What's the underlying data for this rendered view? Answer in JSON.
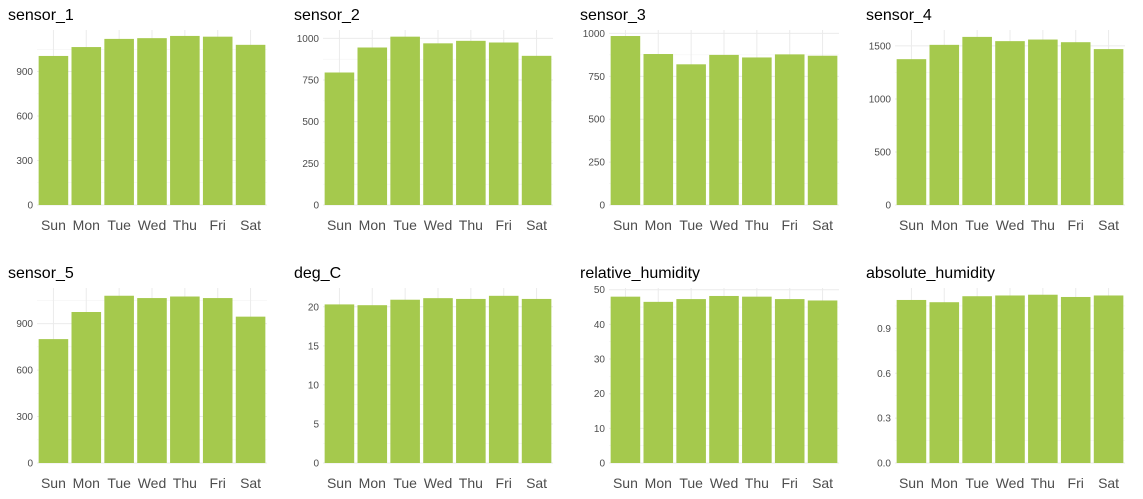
{
  "colors": {
    "bar": "#a5c94d",
    "grid": "#ebebeb",
    "tick_text": "#4d4d4d",
    "title_text": "#000000"
  },
  "chart_data": [
    {
      "type": "bar",
      "title": "sensor_1",
      "categories": [
        "Sun",
        "Mon",
        "Tue",
        "Wed",
        "Thu",
        "Fri",
        "Sat"
      ],
      "values": [
        1005,
        1065,
        1120,
        1125,
        1140,
        1135,
        1080
      ],
      "ylim": [
        0,
        1180
      ],
      "yticks": [
        0,
        300,
        600,
        900
      ],
      "ytick_labels": [
        "0",
        "300",
        "600",
        "900"
      ],
      "grid": true
    },
    {
      "type": "bar",
      "title": "sensor_2",
      "categories": [
        "Sun",
        "Mon",
        "Tue",
        "Wed",
        "Thu",
        "Fri",
        "Sat"
      ],
      "values": [
        795,
        945,
        1010,
        970,
        985,
        975,
        895
      ],
      "ylim": [
        0,
        1050
      ],
      "yticks": [
        0,
        250,
        500,
        750,
        1000
      ],
      "ytick_labels": [
        "0",
        "250",
        "500",
        "750",
        "1000"
      ],
      "grid": true
    },
    {
      "type": "bar",
      "title": "sensor_3",
      "categories": [
        "Sun",
        "Mon",
        "Tue",
        "Wed",
        "Thu",
        "Fri",
        "Sat"
      ],
      "values": [
        985,
        880,
        820,
        875,
        860,
        878,
        870
      ],
      "ylim": [
        0,
        1020
      ],
      "yticks": [
        0,
        250,
        500,
        750,
        1000
      ],
      "ytick_labels": [
        "0",
        "250",
        "500",
        "750",
        "1000"
      ],
      "grid": true
    },
    {
      "type": "bar",
      "title": "sensor_4",
      "categories": [
        "Sun",
        "Mon",
        "Tue",
        "Wed",
        "Thu",
        "Fri",
        "Sat"
      ],
      "values": [
        1375,
        1510,
        1585,
        1545,
        1560,
        1535,
        1470
      ],
      "ylim": [
        0,
        1650
      ],
      "yticks": [
        0,
        500,
        1000,
        1500
      ],
      "ytick_labels": [
        "0",
        "500",
        "1000",
        "1500"
      ],
      "grid": true
    },
    {
      "type": "bar",
      "title": "sensor_5",
      "categories": [
        "Sun",
        "Mon",
        "Tue",
        "Wed",
        "Thu",
        "Fri",
        "Sat"
      ],
      "values": [
        800,
        975,
        1080,
        1065,
        1075,
        1065,
        945
      ],
      "ylim": [
        0,
        1130
      ],
      "yticks": [
        0,
        300,
        600,
        900
      ],
      "ytick_labels": [
        "0",
        "300",
        "600",
        "900"
      ],
      "grid": true
    },
    {
      "type": "bar",
      "title": "deg_C",
      "categories": [
        "Sun",
        "Mon",
        "Tue",
        "Wed",
        "Thu",
        "Fri",
        "Sat"
      ],
      "values": [
        20.3,
        20.2,
        20.9,
        21.1,
        21.0,
        21.4,
        21.0
      ],
      "ylim": [
        0,
        22.4
      ],
      "yticks": [
        0,
        5,
        10,
        15,
        20
      ],
      "ytick_labels": [
        "0",
        "5",
        "10",
        "15",
        "20"
      ],
      "grid": true
    },
    {
      "type": "bar",
      "title": "relative_humidity",
      "categories": [
        "Sun",
        "Mon",
        "Tue",
        "Wed",
        "Thu",
        "Fri",
        "Sat"
      ],
      "values": [
        48.0,
        46.5,
        47.3,
        48.2,
        48.0,
        47.3,
        46.9
      ],
      "ylim": [
        0,
        50.5
      ],
      "yticks": [
        0,
        10,
        20,
        30,
        40,
        50
      ],
      "ytick_labels": [
        "0",
        "10",
        "20",
        "30",
        "40",
        "50"
      ],
      "grid": true
    },
    {
      "type": "bar",
      "title": "absolute_humidity",
      "categories": [
        "Sun",
        "Mon",
        "Tue",
        "Wed",
        "Thu",
        "Fri",
        "Sat"
      ],
      "values": [
        1.09,
        1.075,
        1.115,
        1.12,
        1.125,
        1.11,
        1.12
      ],
      "ylim": [
        0,
        1.17
      ],
      "yticks": [
        0.0,
        0.3,
        0.6,
        0.9
      ],
      "ytick_labels": [
        "0.0",
        "0.3",
        "0.6",
        "0.9"
      ],
      "grid": true
    }
  ]
}
